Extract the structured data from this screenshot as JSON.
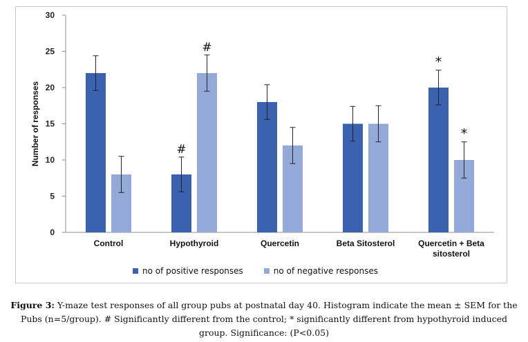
{
  "chart_data": {
    "type": "bar",
    "categories": [
      "Control",
      "Hypothyroid",
      "Quercetin",
      "Beta Sitosterol",
      "Quercetin + Beta sitosterol"
    ],
    "series": [
      {
        "name": "no of positive responses",
        "color": "#3a62af",
        "values": [
          22,
          8,
          18,
          15,
          20
        ],
        "errors": [
          2.4,
          2.4,
          2.4,
          2.4,
          2.4
        ],
        "annotations": [
          "",
          "#",
          "",
          "",
          "*"
        ]
      },
      {
        "name": "no of negative responses",
        "color": "#93a9d8",
        "values": [
          8,
          22,
          12,
          15,
          10
        ],
        "errors": [
          2.5,
          2.5,
          2.5,
          2.5,
          2.5
        ],
        "annotations": [
          "",
          "#",
          "",
          "",
          "*"
        ]
      }
    ],
    "title": "",
    "xlabel": "",
    "ylabel": "Number of responses",
    "ylim": [
      0,
      30
    ],
    "yticks": [
      0,
      5,
      10,
      15,
      20,
      25,
      30
    ],
    "grid": false,
    "legend_position": "bottom"
  },
  "caption": {
    "label": "Figure 3:",
    "text": " Y-maze test responses of all group pubs at postnatal day 40. Histogram indicate the mean ± SEM for the Pubs (n=5/group). # Significantly different from the control; * significantly different from hypothyroid induced group. Significance: (P<0.05)"
  }
}
